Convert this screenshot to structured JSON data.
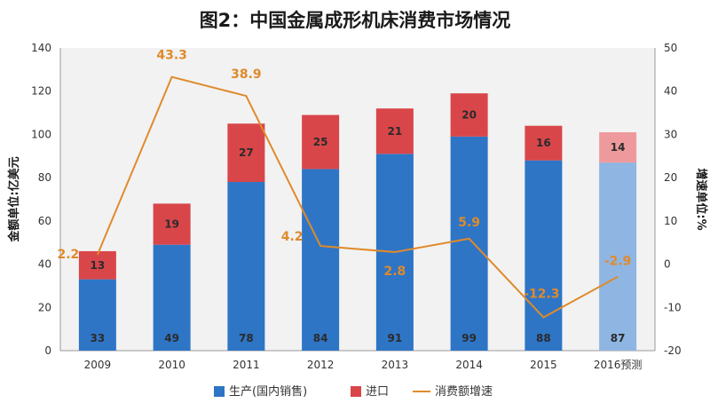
{
  "chart_data": {
    "type": "bar",
    "stacked": true,
    "title": "图2：中国金属成形机床消费市场情况",
    "categories": [
      "2009",
      "2010",
      "2011",
      "2012",
      "2013",
      "2014",
      "2015",
      "2016预测"
    ],
    "series": [
      {
        "name": "生产(国内销售)",
        "type": "bar",
        "axis": "left",
        "color": "#2e75c6",
        "forecast_color": "#8fb5e2",
        "values": [
          33,
          49,
          78,
          84,
          91,
          99,
          88,
          87
        ]
      },
      {
        "name": "进口",
        "type": "bar",
        "axis": "left",
        "color": "#d9464a",
        "forecast_color": "#ee9a9c",
        "values": [
          13,
          19,
          27,
          25,
          21,
          20,
          16,
          14
        ]
      },
      {
        "name": "消费额增速",
        "type": "line",
        "axis": "right",
        "color": "#e08a2b",
        "values": [
          2.2,
          43.3,
          38.9,
          4.2,
          2.8,
          5.9,
          -12.3,
          -2.9
        ],
        "labels": [
          "2.2",
          "43.3",
          "38.9",
          "4.2",
          "2.8",
          "5.9",
          "-12.3",
          "-2.9"
        ]
      }
    ],
    "ylabel": "金额单位:亿美元",
    "ylim": [
      0,
      140
    ],
    "yticks": [
      "0",
      "20",
      "40",
      "60",
      "80",
      "100",
      "120",
      "140"
    ],
    "y2label": "增速单位:%",
    "y2lim": [
      -20,
      50
    ],
    "y2ticks": [
      "-20",
      "-10",
      "0",
      "10",
      "20",
      "30",
      "40",
      "50"
    ],
    "grid": false,
    "legend_position": "bottom",
    "plot_background": "#f2f2f2"
  }
}
